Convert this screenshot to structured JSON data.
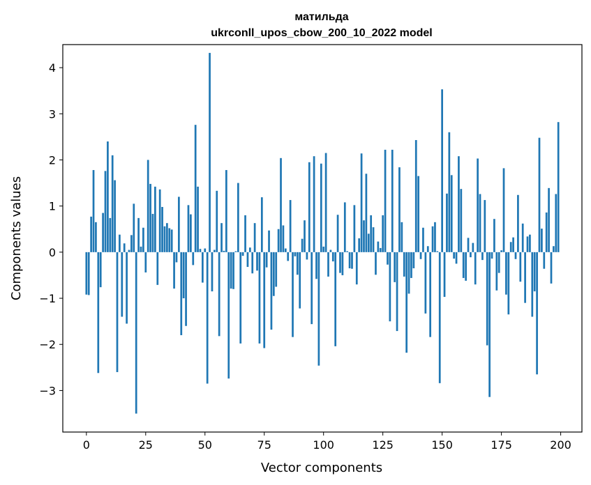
{
  "chart_data": {
    "type": "bar",
    "title_line1": "матильда",
    "title_line2": "ukrconll_upos_cbow_200_10_2022 model",
    "xlabel": "Vector components",
    "ylabel": "Components values",
    "xlim": [
      -9.95,
      208.95
    ],
    "ylim": [
      -3.9,
      4.5
    ],
    "xticks": [
      0,
      25,
      50,
      75,
      100,
      125,
      150,
      175,
      200
    ],
    "yticks": [
      -3,
      -2,
      -1,
      0,
      1,
      2,
      3,
      4
    ],
    "ytick_labels": [
      "−3",
      "−2",
      "−1",
      "0",
      "1",
      "2",
      "3",
      "4"
    ],
    "grid": false,
    "bar_color": "#1f77b4",
    "values": [
      -0.92,
      -0.93,
      0.77,
      1.78,
      0.65,
      -2.62,
      -0.76,
      0.85,
      1.76,
      2.4,
      0.74,
      2.1,
      1.56,
      -2.6,
      0.38,
      -1.4,
      0.19,
      -1.55,
      0.05,
      0.37,
      1.05,
      -3.5,
      0.74,
      0.12,
      0.53,
      -0.44,
      2.0,
      1.48,
      0.83,
      1.42,
      -0.71,
      1.36,
      0.98,
      0.56,
      0.63,
      0.52,
      0.49,
      -0.79,
      -0.22,
      1.2,
      -1.8,
      -1.0,
      -1.6,
      1.02,
      0.82,
      -0.28,
      2.76,
      1.42,
      0.07,
      -0.66,
      0.08,
      -2.85,
      4.32,
      -0.85,
      0.05,
      1.33,
      -1.82,
      0.63,
      0.03,
      1.78,
      -2.74,
      -0.79,
      -0.8,
      0.02,
      1.5,
      -1.98,
      -0.08,
      0.8,
      -0.32,
      0.1,
      -0.46,
      0.63,
      -0.4,
      -1.98,
      1.19,
      -2.08,
      -0.33,
      0.47,
      -1.68,
      -0.95,
      -0.75,
      0.5,
      2.04,
      0.58,
      0.08,
      -0.19,
      1.13,
      -1.84,
      -0.09,
      -0.49,
      -1.22,
      0.29,
      0.69,
      -0.16,
      1.95,
      -1.56,
      2.08,
      -0.58,
      -2.46,
      1.92,
      0.12,
      2.15,
      -0.53,
      0.05,
      -0.2,
      -2.04,
      0.81,
      -0.45,
      -0.5,
      1.08,
      0.02,
      -0.35,
      -0.36,
      1.02,
      -0.7,
      0.3,
      2.14,
      0.69,
      1.7,
      0.4,
      0.8,
      0.54,
      -0.49,
      0.23,
      0.09,
      0.8,
      2.22,
      -0.27,
      -1.5,
      2.22,
      -0.65,
      -1.71,
      1.84,
      0.65,
      -0.53,
      -2.18,
      -0.9,
      -0.56,
      -0.35,
      2.43,
      1.65,
      -0.15,
      0.53,
      -1.33,
      0.13,
      -1.84,
      0.56,
      0.65,
      0.02,
      -2.84,
      3.53,
      -0.97,
      1.27,
      2.6,
      1.67,
      -0.14,
      -0.25,
      2.08,
      1.37,
      -0.56,
      -0.62,
      0.31,
      -0.11,
      0.2,
      -0.7,
      2.03,
      1.26,
      -0.17,
      1.13,
      -2.02,
      -3.14,
      -0.14,
      0.72,
      -0.83,
      -0.45,
      0.04,
      1.82,
      -0.92,
      -1.35,
      0.22,
      0.32,
      -0.15,
      1.24,
      -0.64,
      0.62,
      -1.1,
      0.34,
      0.38,
      -1.4,
      -0.85,
      -2.65,
      2.48,
      0.51,
      -0.36,
      0.86,
      1.39,
      -0.68,
      0.13,
      1.26,
      2.82
    ]
  }
}
